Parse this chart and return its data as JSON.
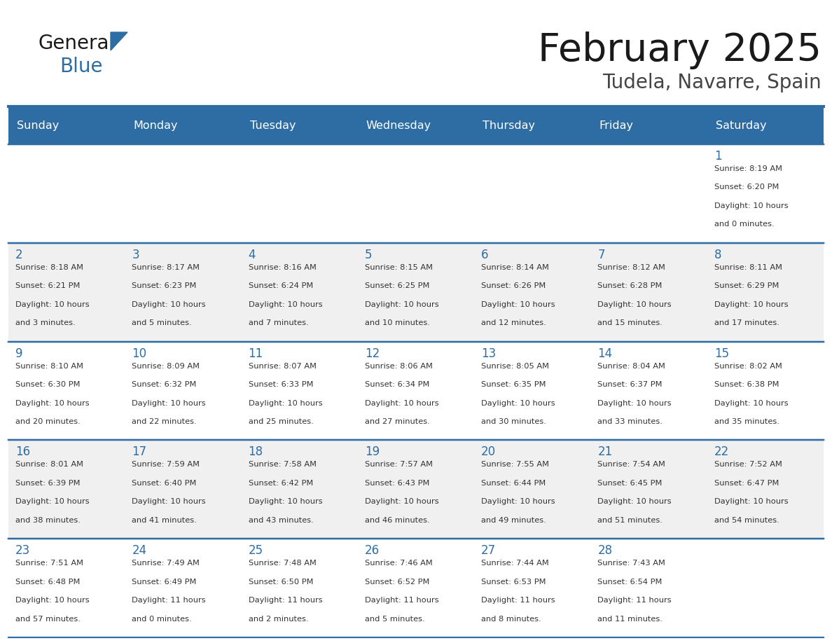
{
  "title": "February 2025",
  "subtitle": "Tudela, Navarre, Spain",
  "header_bg": "#2E6DA4",
  "header_text": "#FFFFFF",
  "cell_bg_light": "#FFFFFF",
  "cell_bg_dark": "#F0F0F0",
  "day_headers": [
    "Sunday",
    "Monday",
    "Tuesday",
    "Wednesday",
    "Thursday",
    "Friday",
    "Saturday"
  ],
  "title_color": "#1a1a1a",
  "subtitle_color": "#444444",
  "day_num_color": "#2E6DA4",
  "cell_text_color": "#333333",
  "grid_color": "#2E6DA4",
  "line_color": "#2E6DA4",
  "logo_general_color": "#1a1a1a",
  "logo_blue_color": "#2E6DA4",
  "logo_triangle_color": "#2E6DA4",
  "weeks": [
    [
      null,
      null,
      null,
      null,
      null,
      null,
      1
    ],
    [
      2,
      3,
      4,
      5,
      6,
      7,
      8
    ],
    [
      9,
      10,
      11,
      12,
      13,
      14,
      15
    ],
    [
      16,
      17,
      18,
      19,
      20,
      21,
      22
    ],
    [
      23,
      24,
      25,
      26,
      27,
      28,
      null
    ]
  ],
  "cell_data": {
    "1": [
      "Sunrise: 8:19 AM",
      "Sunset: 6:20 PM",
      "Daylight: 10 hours",
      "and 0 minutes."
    ],
    "2": [
      "Sunrise: 8:18 AM",
      "Sunset: 6:21 PM",
      "Daylight: 10 hours",
      "and 3 minutes."
    ],
    "3": [
      "Sunrise: 8:17 AM",
      "Sunset: 6:23 PM",
      "Daylight: 10 hours",
      "and 5 minutes."
    ],
    "4": [
      "Sunrise: 8:16 AM",
      "Sunset: 6:24 PM",
      "Daylight: 10 hours",
      "and 7 minutes."
    ],
    "5": [
      "Sunrise: 8:15 AM",
      "Sunset: 6:25 PM",
      "Daylight: 10 hours",
      "and 10 minutes."
    ],
    "6": [
      "Sunrise: 8:14 AM",
      "Sunset: 6:26 PM",
      "Daylight: 10 hours",
      "and 12 minutes."
    ],
    "7": [
      "Sunrise: 8:12 AM",
      "Sunset: 6:28 PM",
      "Daylight: 10 hours",
      "and 15 minutes."
    ],
    "8": [
      "Sunrise: 8:11 AM",
      "Sunset: 6:29 PM",
      "Daylight: 10 hours",
      "and 17 minutes."
    ],
    "9": [
      "Sunrise: 8:10 AM",
      "Sunset: 6:30 PM",
      "Daylight: 10 hours",
      "and 20 minutes."
    ],
    "10": [
      "Sunrise: 8:09 AM",
      "Sunset: 6:32 PM",
      "Daylight: 10 hours",
      "and 22 minutes."
    ],
    "11": [
      "Sunrise: 8:07 AM",
      "Sunset: 6:33 PM",
      "Daylight: 10 hours",
      "and 25 minutes."
    ],
    "12": [
      "Sunrise: 8:06 AM",
      "Sunset: 6:34 PM",
      "Daylight: 10 hours",
      "and 27 minutes."
    ],
    "13": [
      "Sunrise: 8:05 AM",
      "Sunset: 6:35 PM",
      "Daylight: 10 hours",
      "and 30 minutes."
    ],
    "14": [
      "Sunrise: 8:04 AM",
      "Sunset: 6:37 PM",
      "Daylight: 10 hours",
      "and 33 minutes."
    ],
    "15": [
      "Sunrise: 8:02 AM",
      "Sunset: 6:38 PM",
      "Daylight: 10 hours",
      "and 35 minutes."
    ],
    "16": [
      "Sunrise: 8:01 AM",
      "Sunset: 6:39 PM",
      "Daylight: 10 hours",
      "and 38 minutes."
    ],
    "17": [
      "Sunrise: 7:59 AM",
      "Sunset: 6:40 PM",
      "Daylight: 10 hours",
      "and 41 minutes."
    ],
    "18": [
      "Sunrise: 7:58 AM",
      "Sunset: 6:42 PM",
      "Daylight: 10 hours",
      "and 43 minutes."
    ],
    "19": [
      "Sunrise: 7:57 AM",
      "Sunset: 6:43 PM",
      "Daylight: 10 hours",
      "and 46 minutes."
    ],
    "20": [
      "Sunrise: 7:55 AM",
      "Sunset: 6:44 PM",
      "Daylight: 10 hours",
      "and 49 minutes."
    ],
    "21": [
      "Sunrise: 7:54 AM",
      "Sunset: 6:45 PM",
      "Daylight: 10 hours",
      "and 51 minutes."
    ],
    "22": [
      "Sunrise: 7:52 AM",
      "Sunset: 6:47 PM",
      "Daylight: 10 hours",
      "and 54 minutes."
    ],
    "23": [
      "Sunrise: 7:51 AM",
      "Sunset: 6:48 PM",
      "Daylight: 10 hours",
      "and 57 minutes."
    ],
    "24": [
      "Sunrise: 7:49 AM",
      "Sunset: 6:49 PM",
      "Daylight: 11 hours",
      "and 0 minutes."
    ],
    "25": [
      "Sunrise: 7:48 AM",
      "Sunset: 6:50 PM",
      "Daylight: 11 hours",
      "and 2 minutes."
    ],
    "26": [
      "Sunrise: 7:46 AM",
      "Sunset: 6:52 PM",
      "Daylight: 11 hours",
      "and 5 minutes."
    ],
    "27": [
      "Sunrise: 7:44 AM",
      "Sunset: 6:53 PM",
      "Daylight: 11 hours",
      "and 8 minutes."
    ],
    "28": [
      "Sunrise: 7:43 AM",
      "Sunset: 6:54 PM",
      "Daylight: 11 hours",
      "and 11 minutes."
    ]
  }
}
